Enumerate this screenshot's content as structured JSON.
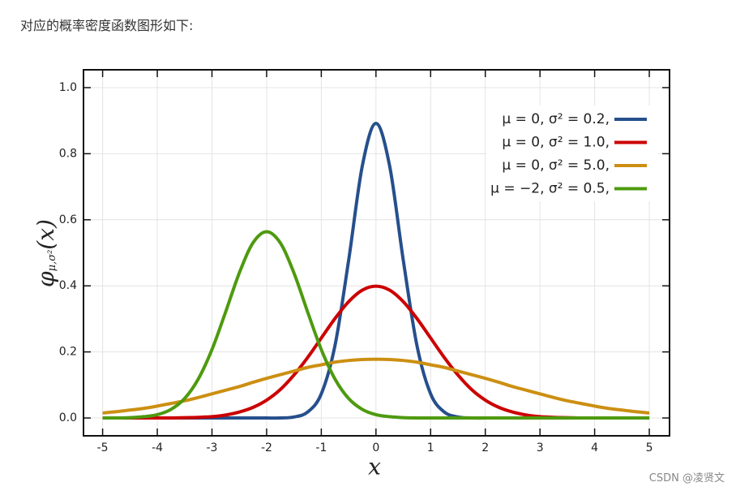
{
  "intro": "对应的概率密度函数图形如下:",
  "watermark": "CSDN @凌贤文",
  "chart_data": {
    "type": "line",
    "xlabel": "x",
    "ylabel": {
      "symbol": "φ",
      "subscript": "μ,σ²",
      "argument": "(x)"
    },
    "x": [
      -5,
      -4.75,
      -4.5,
      -4.25,
      -4,
      -3.75,
      -3.5,
      -3.25,
      -3,
      -2.75,
      -2.5,
      -2.25,
      -2,
      -1.75,
      -1.5,
      -1.25,
      -1,
      -0.75,
      -0.5,
      -0.25,
      0,
      0.25,
      0.5,
      0.75,
      1,
      1.25,
      1.5,
      1.75,
      2,
      2.25,
      2.5,
      2.75,
      3,
      3.25,
      3.5,
      3.75,
      4,
      4.25,
      4.5,
      4.75,
      5
    ],
    "series": [
      {
        "name": "μ = 0,    σ² = 0.2,",
        "color": "#264f8c",
        "values": [
          0,
          0,
          0,
          0,
          0,
          0,
          0,
          0,
          0,
          0,
          0,
          0,
          0,
          0,
          0.003,
          0.018,
          0.073,
          0.219,
          0.477,
          0.763,
          0.892,
          0.763,
          0.477,
          0.219,
          0.073,
          0.018,
          0.003,
          0,
          0,
          0,
          0,
          0,
          0,
          0,
          0,
          0,
          0,
          0,
          0,
          0,
          0
        ]
      },
      {
        "name": "μ = 0,    σ² = 1.0,",
        "color": "#cc0000",
        "values": [
          0,
          0,
          0,
          0,
          0,
          0,
          0.001,
          0.002,
          0.004,
          0.009,
          0.018,
          0.032,
          0.054,
          0.086,
          0.13,
          0.183,
          0.242,
          0.301,
          0.352,
          0.387,
          0.399,
          0.387,
          0.352,
          0.301,
          0.242,
          0.183,
          0.13,
          0.086,
          0.054,
          0.032,
          0.018,
          0.009,
          0.004,
          0.002,
          0.001,
          0,
          0,
          0,
          0,
          0,
          0
        ]
      },
      {
        "name": "μ = 0,    σ² = 5.0,",
        "color": "#cc8f12",
        "values": [
          0.015,
          0.019,
          0.024,
          0.029,
          0.036,
          0.044,
          0.052,
          0.062,
          0.073,
          0.084,
          0.095,
          0.108,
          0.12,
          0.131,
          0.142,
          0.153,
          0.161,
          0.169,
          0.174,
          0.177,
          0.178,
          0.177,
          0.174,
          0.169,
          0.161,
          0.153,
          0.142,
          0.131,
          0.12,
          0.108,
          0.095,
          0.084,
          0.073,
          0.062,
          0.052,
          0.044,
          0.036,
          0.029,
          0.024,
          0.019,
          0.015
        ]
      },
      {
        "name": "μ = −2,  σ² = 0.5,",
        "color": "#4e9a0f",
        "values": [
          0,
          0,
          0.001,
          0.004,
          0.01,
          0.026,
          0.059,
          0.118,
          0.207,
          0.321,
          0.439,
          0.53,
          0.564,
          0.53,
          0.439,
          0.321,
          0.207,
          0.118,
          0.059,
          0.026,
          0.01,
          0.004,
          0.001,
          0,
          0,
          0,
          0,
          0,
          0,
          0,
          0,
          0,
          0,
          0,
          0,
          0,
          0,
          0,
          0,
          0,
          0
        ]
      }
    ],
    "xlim": [
      -5.35,
      5.37
    ],
    "ylim": [
      -0.054,
      1.054
    ],
    "xticks": [
      -5,
      -4,
      -3,
      -2,
      -1,
      0,
      1,
      2,
      3,
      4,
      5
    ],
    "yticks": [
      {
        "value": 0,
        "label": "0.0"
      },
      {
        "value": 0.2,
        "label": "0.2"
      },
      {
        "value": 0.4,
        "label": "0.4"
      },
      {
        "value": 0.6,
        "label": "0.6"
      },
      {
        "value": 0.8,
        "label": "0.8"
      },
      {
        "value": 1,
        "label": "1.0"
      }
    ],
    "grid": true,
    "legend": "upper right"
  }
}
